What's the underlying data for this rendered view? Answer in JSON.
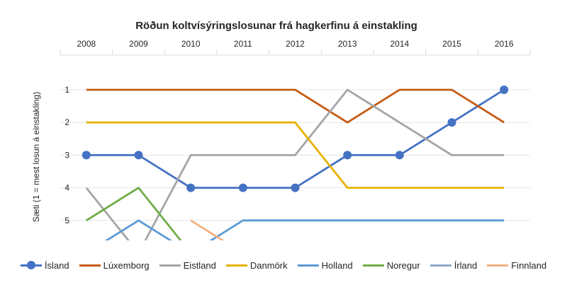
{
  "chart_data": {
    "type": "line",
    "title": "Röðun koltvísýringslosunar frá hagkerfinu á einstakling",
    "ylabel": "Sæti (1 = mest losun á einstakling)",
    "xlabel": "",
    "categories": [
      "2008",
      "2009",
      "2010",
      "2011",
      "2012",
      "2013",
      "2014",
      "2015",
      "2016"
    ],
    "y_ticks": [
      "1",
      "2",
      "3",
      "4",
      "5"
    ],
    "ylim": [
      1,
      5
    ],
    "y_axis_reversed": true,
    "x_axis_position": "top",
    "grid": true,
    "legend_position": "bottom",
    "series": [
      {
        "name": "Ísland",
        "color": "#4472c4",
        "markers": true,
        "values": [
          3,
          3,
          4,
          4,
          4,
          3,
          3,
          2,
          1
        ]
      },
      {
        "name": "Lúxemborg",
        "color": "#c55a11",
        "markers": false,
        "values": [
          1,
          1,
          1,
          1,
          1,
          2,
          1,
          1,
          2
        ]
      },
      {
        "name": "Eistland",
        "color": "#a5a5a5",
        "markers": false,
        "values": [
          4,
          6,
          3,
          3,
          3,
          1,
          2,
          3,
          3
        ]
      },
      {
        "name": "Danmörk",
        "color": "#e8b100",
        "markers": false,
        "values": [
          2,
          2,
          2,
          2,
          2,
          4,
          4,
          4,
          4
        ]
      },
      {
        "name": "Holland",
        "color": "#5b9bd5",
        "markers": false,
        "values": [
          6,
          5,
          6,
          5,
          5,
          5,
          5,
          5,
          5
        ]
      },
      {
        "name": "Noregur",
        "color": "#70ad47",
        "markers": false,
        "values": [
          5,
          4,
          6,
          null,
          null,
          null,
          null,
          null,
          null
        ]
      },
      {
        "name": "Írland",
        "color": "#8faac9",
        "markers": false,
        "values": [
          null,
          null,
          null,
          null,
          null,
          null,
          null,
          null,
          null
        ]
      },
      {
        "name": "Finnland",
        "color": "#f4b183",
        "markers": false,
        "values": [
          null,
          null,
          5,
          6,
          null,
          null,
          null,
          null,
          null
        ]
      }
    ]
  }
}
